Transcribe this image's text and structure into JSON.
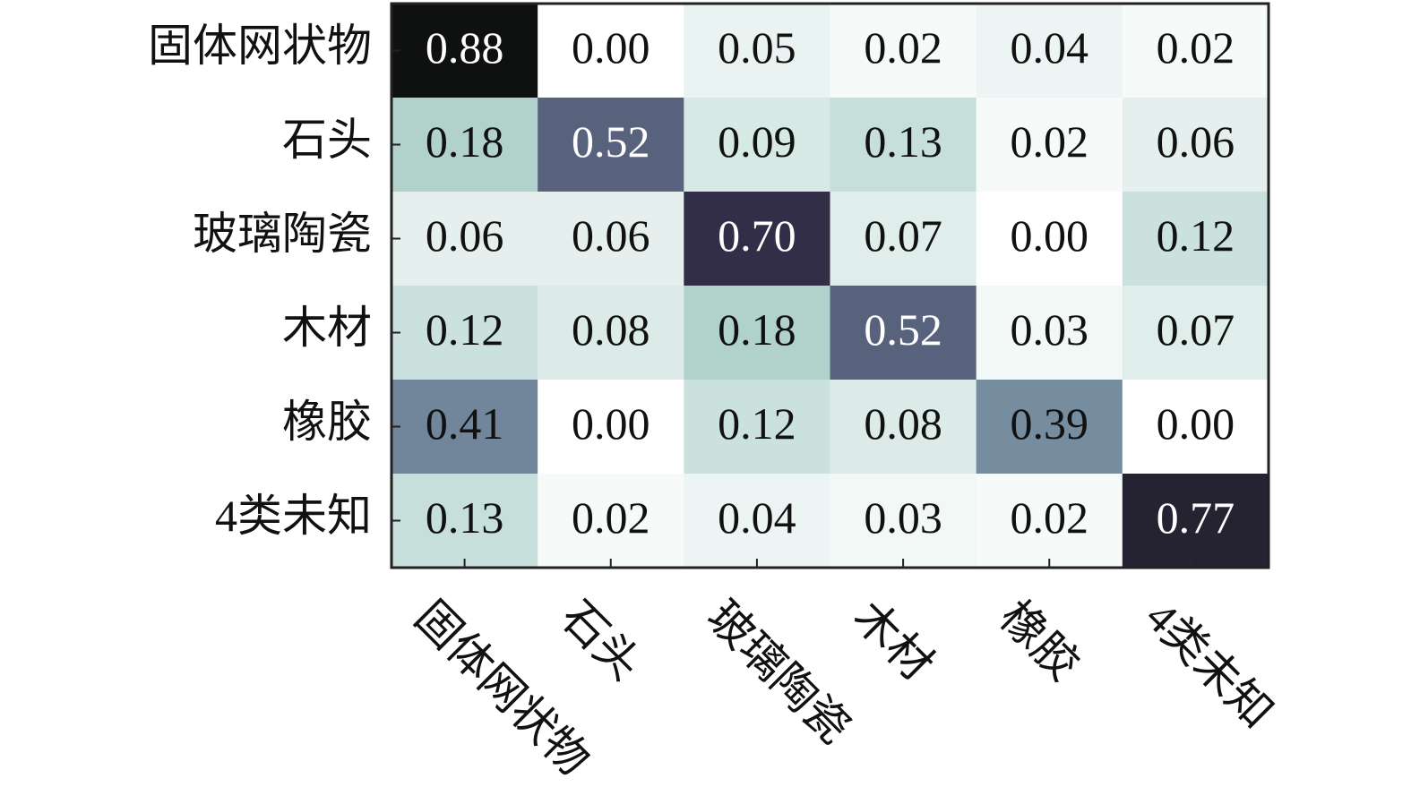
{
  "chart_data": {
    "type": "heatmap",
    "rows": [
      "固体网状物",
      "石头",
      "玻璃陶瓷",
      "木材",
      "橡胶",
      "4类未知"
    ],
    "columns": [
      "固体网状物",
      "石头",
      "玻璃陶瓷",
      "木材",
      "橡胶",
      "4类未知"
    ],
    "values": [
      [
        0.88,
        0,
        0.05,
        0.02,
        0.04,
        0.02
      ],
      [
        0.18,
        0.52,
        0.09,
        0.13,
        0.02,
        0.06
      ],
      [
        0.06,
        0.06,
        0.7,
        0.07,
        0,
        0.12
      ],
      [
        0.12,
        0.08,
        0.18,
        0.52,
        0.03,
        0.07
      ],
      [
        0.41,
        0,
        0.12,
        0.08,
        0.39,
        0
      ],
      [
        0.13,
        0.02,
        0.04,
        0.03,
        0.02,
        0.77
      ]
    ],
    "value_labels": [
      [
        "0.88",
        "0.00",
        "0.05",
        "0.02",
        "0.04",
        "0.02"
      ],
      [
        "0.18",
        "0.52",
        "0.09",
        "0.13",
        "0.02",
        "0.06"
      ],
      [
        "0.06",
        "0.06",
        "0.70",
        "0.07",
        "0.00",
        "0.12"
      ],
      [
        "0.12",
        "0.08",
        "0.18",
        "0.52",
        "0.03",
        "0.07"
      ],
      [
        "0.41",
        "0.00",
        "0.12",
        "0.08",
        "0.39",
        "0.00"
      ],
      [
        "0.13",
        "0.02",
        "0.04",
        "0.03",
        "0.02",
        "0.77"
      ]
    ],
    "colormap": [
      "#ffffff",
      "#9ec8c0",
      "#6a7b95",
      "#3a3553",
      "#0f1010"
    ],
    "clim": [
      0,
      0.88
    ]
  }
}
